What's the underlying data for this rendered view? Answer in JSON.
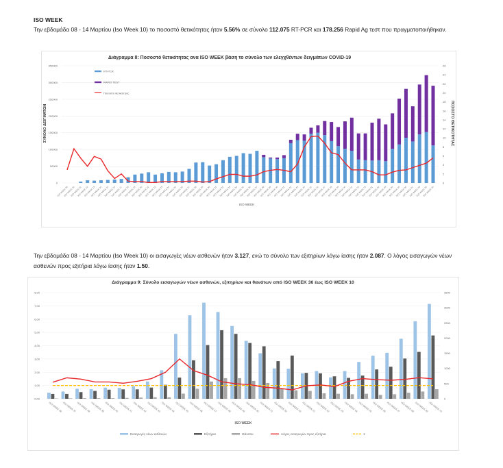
{
  "header": {
    "title": "ISO WEEK"
  },
  "paragraph1": [
    "Την εβδομάδα 08 - 14 Μαρτίου (Iso Week 10) το ποσοστό θετικότητας ήταν ",
    "5.56%",
    " σε σύνολο ",
    "112.075",
    " RT-PCR και ",
    "178.256",
    " Rapid Ag τεστ που πραγματοποιήθηκαν."
  ],
  "paragraph2": [
    "Την εβδομάδα 08 - 14 Μαρτίου (Iso Week 10) οι εισαγωγές νέων ασθενών ήταν ",
    "3.127",
    ", ενώ το σύνολο των εξιτηρίων λόγω ίασης ήταν ",
    "2.087",
    ". Ο λόγος εισαγωγών νέων ασθενών προς εξιτήρια λόγω ίασης ήταν ",
    "1.50",
    "."
  ],
  "colors": {
    "rtpcr": "#5b9bd5",
    "rapid": "#7030a0",
    "positivity": "#e8262a",
    "admissions": "#9dc3e6",
    "discharges": "#595959",
    "deaths": "#a6a6a6",
    "ratio": "#e8262a",
    "one_line": "#ffc000"
  },
  "chart_data": [
    {
      "type": "bar",
      "title": "Διάγραμμα 8: Ποσοστό θετικότητας ανα ISO WEEK βάση το σύνολο των ελεγχθέντων δειγμάτων COVID-19",
      "xlabel": "ISO WEEK",
      "ylabel": "ΣΥΝΟΛΟ ΔΕΙΓΜΑΤΩΝ",
      "y2label": "ΠΟΣΟΣΤΟ ΘΕΤΙΚΟΤΗΤΑΣ",
      "ylim": [
        0,
        350000
      ],
      "y2lim": [
        0,
        26
      ],
      "yticks": [
        "0",
        "50000",
        "100000",
        "150000",
        "200000",
        "250000",
        "300000",
        "350000"
      ],
      "y2ticks": [
        "0",
        "2",
        "4",
        "6",
        "8",
        "10",
        "12",
        "14",
        "16",
        "18",
        "20",
        "22",
        "24",
        "26"
      ],
      "legend_position": "top-left",
      "categories": [
        "ISO WEEK 09",
        "ISO WEEK 10",
        "ISO WEEK 11",
        "ISO WEEK 12",
        "ISO WEEK 13",
        "ISO WEEK 14",
        "ISO WEEK 15",
        "ISO WEEK 16",
        "ISO WEEK 17",
        "ISO WEEK 18",
        "ISO WEEK 19",
        "ISO WEEK 20",
        "ISO WEEK 21",
        "ISO WEEK 22",
        "ISO WEEK 23",
        "ISO WEEK 24",
        "ISO WEEK 25",
        "ISO WEEK 26",
        "ISO WEEK 27",
        "ISO WEEK 28",
        "ISO WEEK 29",
        "ISO WEEK 30",
        "ISO WEEK 31",
        "ISO WEEK 32",
        "ISO WEEK 33",
        "ISO WEEK 34",
        "ISO WEEK 35",
        "ISO WEEK 36",
        "ISO WEEK 37",
        "ISO WEEK 38",
        "ISO WEEK 39",
        "ISO WEEK 40",
        "ISO WEEK 41",
        "ISO WEEK 42",
        "ISO WEEK 43",
        "ISO WEEK 44",
        "ISO WEEK 45",
        "ISO WEEK 46",
        "ISO WEEK 47",
        "ISO WEEK 48",
        "ISO WEEK 49",
        "ISO WEEK 50",
        "ISO WEEK 51",
        "ISO WEEK 52",
        "ISO WEEK 53",
        "ISO WEEK 01",
        "ISO WEEK 02",
        "ISO WEEK 03",
        "ISO WEEK 04",
        "ISO WEEK 05",
        "ISO WEEK 06",
        "ISO WEEK 07",
        "ISO WEEK 08",
        "ISO WEEK 09",
        "ISO WEEK 10"
      ],
      "series": [
        {
          "name": "RT-PCR",
          "kind": "bar",
          "values": [
            0,
            0,
            4000,
            8000,
            7000,
            8000,
            9000,
            10000,
            12000,
            17000,
            25000,
            28000,
            32000,
            25000,
            29000,
            33000,
            32000,
            34000,
            42000,
            61000,
            62000,
            52000,
            56000,
            68000,
            78000,
            81000,
            89000,
            87000,
            96000,
            77000,
            73000,
            71000,
            74000,
            119000,
            128000,
            126000,
            147000,
            150000,
            143000,
            125000,
            110000,
            102000,
            96000,
            70000,
            68000,
            67000,
            68000,
            65000,
            102000,
            115000,
            135000,
            124000,
            145000,
            152000,
            112075
          ]
        },
        {
          "name": "RAPID TEST",
          "kind": "bar-stacked",
          "values": [
            0,
            0,
            0,
            0,
            0,
            0,
            0,
            0,
            0,
            0,
            0,
            0,
            0,
            0,
            0,
            0,
            0,
            0,
            0,
            0,
            0,
            0,
            0,
            0,
            0,
            0,
            0,
            0,
            0,
            7000,
            3000,
            5000,
            9000,
            10000,
            19000,
            19000,
            18000,
            22000,
            42000,
            57000,
            57000,
            82000,
            99000,
            78000,
            80000,
            113000,
            124000,
            110000,
            106000,
            137000,
            146000,
            105000,
            149000,
            170000,
            178256
          ]
        },
        {
          "name": "Ποσοστό θετικότητας",
          "kind": "line",
          "axis": "right",
          "values": [
            2.9,
            7.6,
            5.5,
            3.7,
            5.9,
            5.3,
            2.7,
            1.0,
            2.0,
            0.4,
            0.3,
            0.3,
            0.1,
            0.1,
            0.3,
            0.3,
            0.3,
            0.3,
            0.4,
            0.4,
            0.2,
            0.3,
            0.9,
            1.4,
            1.9,
            1.9,
            1.5,
            1.5,
            1.8,
            2.5,
            2.8,
            3.0,
            2.8,
            2.5,
            4.2,
            8.0,
            10.3,
            10.4,
            8.8,
            6.7,
            6.3,
            4.4,
            2.9,
            2.9,
            2.9,
            2.5,
            1.8,
            1.8,
            2.4,
            2.8,
            2.9,
            3.4,
            3.9,
            4.4,
            5.56
          ]
        }
      ]
    },
    {
      "type": "bar",
      "title": "Διάγραμμα 9: Σύνολο εισαγωγών νέων ασθενών, εξιτηρίων και θανάτων από ISO WEEK 36 έως ISO WEEK 10",
      "xlabel": "ISO WEEK",
      "ylim": [
        0,
        8
      ],
      "y2lim": [
        0,
        3500
      ],
      "yticks": [
        "0,00",
        "1,00",
        "2,00",
        "3,00",
        "4,00",
        "5,00",
        "6,00",
        "7,00",
        "8,00"
      ],
      "y2ticks": [
        "0",
        "500",
        "1000",
        "1500",
        "2000",
        "2500",
        "3000",
        "3500"
      ],
      "legend_position": "bottom",
      "categories": [
        "ISO WEEK 36",
        "ISO WEEK 37",
        "ISO WEEK 38",
        "ISO WEEK 39",
        "ISO WEEK 40",
        "ISO WEEK 41",
        "ISO WEEK 42",
        "ISO WEEK 43",
        "ISO WEEK 44",
        "ISO WEEK 45",
        "ISO WEEK 46",
        "ISO WEEK 47",
        "ISO WEEK 48",
        "ISO WEEK 49",
        "ISO WEEK 50",
        "ISO WEEK 51",
        "ISO WEEK 52",
        "ISO WEEK 53",
        "ISO WEEK 01",
        "ISO WEEK 02",
        "ISO WEEK 03",
        "ISO WEEK 04",
        "ISO WEEK 05",
        "ISO WEEK 06",
        "ISO WEEK 07",
        "ISO WEEK 08",
        "ISO WEEK 09",
        "ISO WEEK 10"
      ],
      "series": [
        {
          "name": "Εισαγωγές νέων ασθενών",
          "kind": "bar",
          "axis": "right",
          "values": [
            200,
            240,
            330,
            315,
            370,
            360,
            415,
            570,
            940,
            2140,
            2750,
            3170,
            2860,
            2400,
            1910,
            1500,
            1000,
            990,
            840,
            915,
            705,
            915,
            1215,
            1420,
            1515,
            1980,
            2556,
            3127
          ]
        },
        {
          "name": "Εξιτήρια",
          "kind": "bar",
          "axis": "right",
          "values": [
            160,
            160,
            220,
            260,
            300,
            310,
            310,
            370,
            460,
            700,
            1270,
            1770,
            2260,
            2140,
            1840,
            1730,
            1240,
            1425,
            855,
            840,
            740,
            690,
            765,
            967,
            1057,
            1327,
            1545,
            2087
          ]
        },
        {
          "name": "Θάνατοι",
          "kind": "bar",
          "axis": "right",
          "values": [
            10,
            15,
            20,
            20,
            20,
            30,
            40,
            50,
            50,
            170,
            330,
            570,
            680,
            680,
            590,
            520,
            350,
            280,
            260,
            180,
            165,
            150,
            165,
            130,
            150,
            200,
            240,
            315
          ]
        },
        {
          "name": "Λόγος εισαγωγών προς εξιτήρια",
          "kind": "line",
          "axis": "left",
          "values": [
            1.25,
            1.58,
            1.48,
            1.27,
            1.27,
            1.17,
            1.32,
            1.52,
            2.0,
            3.0,
            2.12,
            1.77,
            1.28,
            1.13,
            1.07,
            0.87,
            0.8,
            0.67,
            0.98,
            1.05,
            0.92,
            1.32,
            1.52,
            1.44,
            1.4,
            1.46,
            1.59,
            1.5
          ]
        },
        {
          "name": "1",
          "kind": "dashed-line",
          "axis": "left",
          "values": [
            1,
            1,
            1,
            1,
            1,
            1,
            1,
            1,
            1,
            1,
            1,
            1,
            1,
            1,
            1,
            1,
            1,
            1,
            1,
            1,
            1,
            1,
            1,
            1,
            1,
            1,
            1,
            1
          ]
        }
      ]
    }
  ]
}
